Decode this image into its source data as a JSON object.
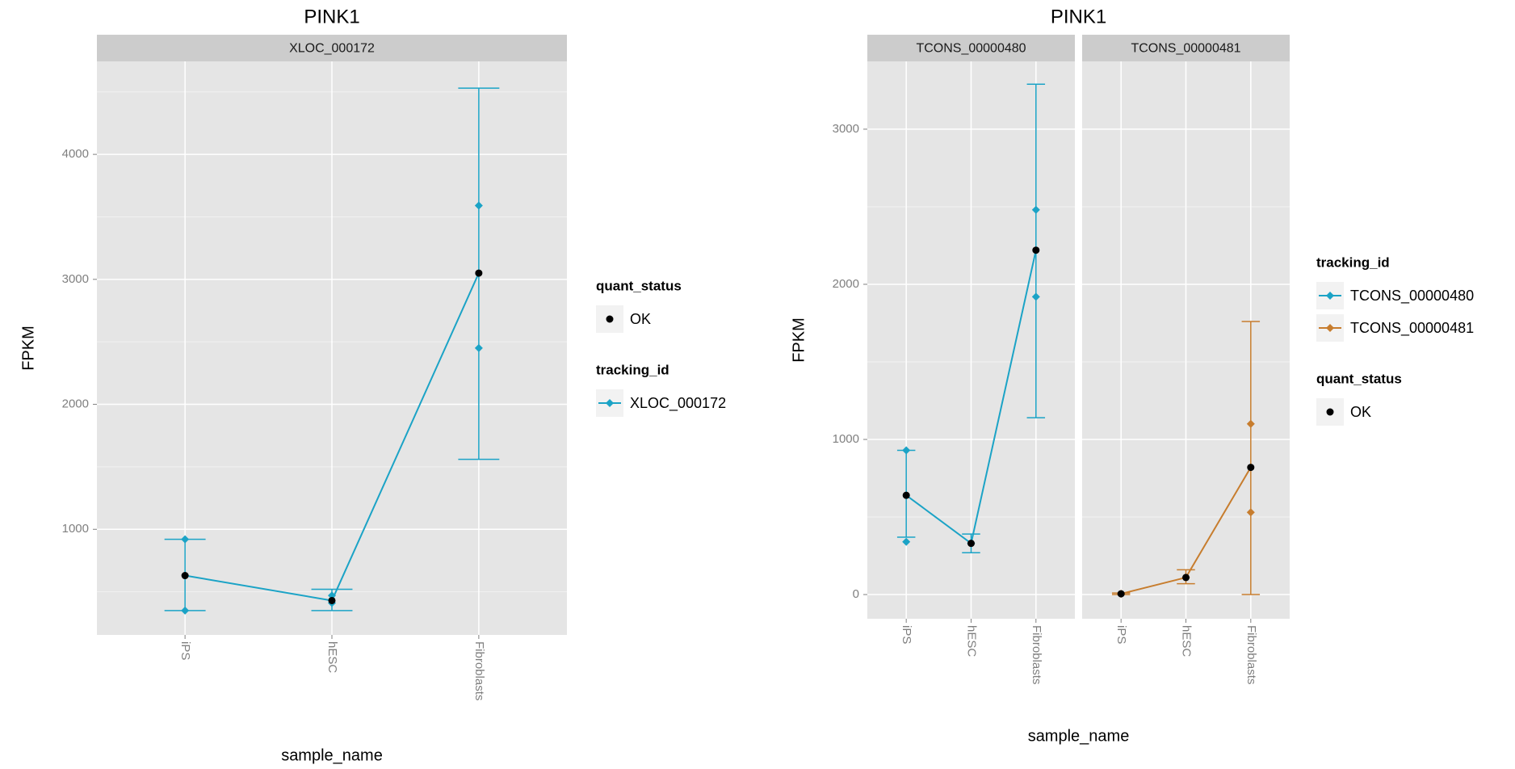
{
  "chart_data": [
    {
      "type": "line",
      "title": "PINK1",
      "x_label": "sample_name",
      "y_label": "FPKM",
      "categories": [
        "iPS",
        "hESC",
        "Fibroblasts"
      ],
      "ylim": [
        155,
        4744
      ],
      "yticks": [
        1000,
        2000,
        3000,
        4000
      ],
      "grid": true,
      "point_color": "#000000",
      "series": [
        {
          "name": "XLOC_000172",
          "color": "#1ba3c6",
          "values": [
            630,
            430,
            3050
          ],
          "lower": [
            350,
            350,
            1560
          ],
          "upper": [
            920,
            520,
            4530
          ],
          "replicates": [
            [
              920,
              350
            ],
            [
              470,
              410
            ],
            [
              3590,
              2450
            ]
          ]
        }
      ],
      "legends": [
        {
          "title": "quant_status",
          "entries": [
            {
              "label": "OK",
              "color": "#000000",
              "marker": "dot"
            }
          ]
        },
        {
          "title": "tracking_id",
          "entries": [
            {
              "label": "XLOC_000172",
              "color": "#1ba3c6",
              "marker": "line"
            }
          ]
        }
      ]
    },
    {
      "type": "line",
      "title": "PINK1",
      "x_label": "sample_name",
      "y_label": "FPKM",
      "categories": [
        "iPS",
        "hESC",
        "Fibroblasts"
      ],
      "ylim": [
        -156,
        3437
      ],
      "yticks": [
        0,
        1000,
        2000,
        3000
      ],
      "grid": true,
      "point_color": "#000000",
      "series": [
        {
          "name": "TCONS_00000480",
          "color": "#1ba3c6",
          "values": [
            640,
            330,
            2220
          ],
          "lower": [
            370,
            270,
            1140
          ],
          "upper": [
            930,
            390,
            3290
          ],
          "replicates": [
            [
              930,
              340
            ],
            [
              330,
              330
            ],
            [
              2480,
              1920
            ]
          ]
        },
        {
          "name": "TCONS_00000481",
          "color": "#c77d2e",
          "values": [
            5,
            110,
            820
          ],
          "lower": [
            0,
            70,
            0
          ],
          "upper": [
            10,
            160,
            1760
          ],
          "replicates": [
            [
              5,
              5
            ],
            [
              110,
              110
            ],
            [
              1100,
              530
            ]
          ]
        }
      ],
      "legends": [
        {
          "title": "tracking_id",
          "entries": [
            {
              "label": "TCONS_00000480",
              "color": "#1ba3c6",
              "marker": "line"
            },
            {
              "label": "TCONS_00000481",
              "color": "#c77d2e",
              "marker": "line"
            }
          ]
        },
        {
          "title": "quant_status",
          "entries": [
            {
              "label": "OK",
              "color": "#000000",
              "marker": "dot"
            }
          ]
        }
      ]
    }
  ]
}
